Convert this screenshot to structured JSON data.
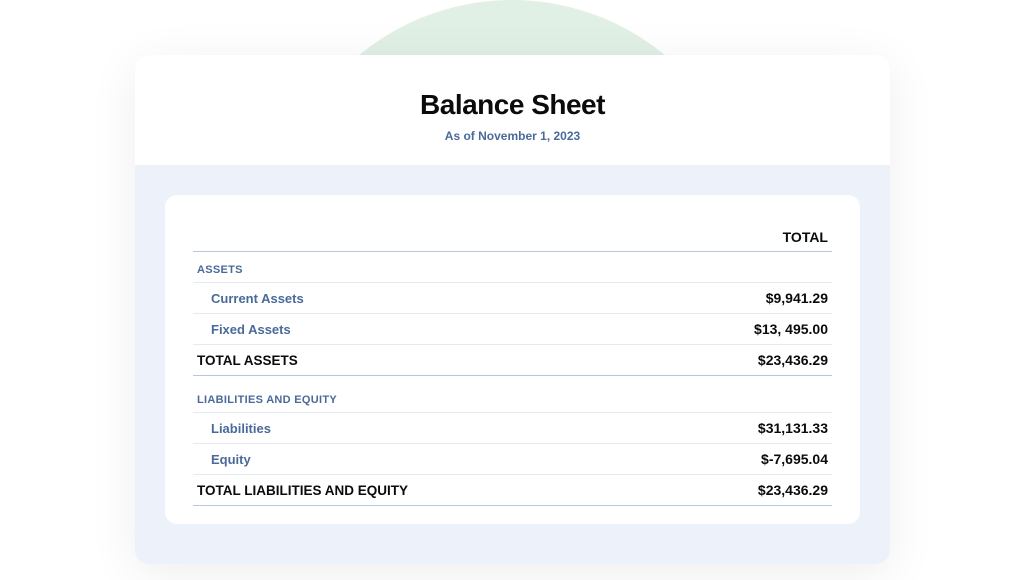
{
  "colors": {
    "bgCircle": "#e1f0e4",
    "outerBg": "#edf1f9",
    "headerBg": "#ffffff",
    "cardBg": "#ffffff",
    "title": "#0b0b0b",
    "subtitle": "#4a6a9a",
    "sectionHeader": "#4a6a9a",
    "labelSub": "#4a6a9a",
    "amount": "#0b0b0b",
    "totalText": "#0b0b0b",
    "borderLight": "#e5e9f0",
    "borderStrong": "#b8c6dc"
  },
  "report": {
    "title": "Balance Sheet",
    "subtitle": "As of November 1, 2023",
    "totalHeader": "TOTAL",
    "sections": [
      {
        "header": "ASSETS",
        "rows": [
          {
            "label": "Current Assets",
            "amount": "$9,941.29"
          },
          {
            "label": "Fixed Assets",
            "amount": "$13, 495.00"
          }
        ],
        "total": {
          "label": "TOTAL ASSETS",
          "amount": "$23,436.29"
        }
      },
      {
        "header": "LIABILITIES AND EQUITY",
        "rows": [
          {
            "label": "Liabilities",
            "amount": "$31,131.33"
          },
          {
            "label": "Equity",
            "amount": "$-7,695.04"
          }
        ],
        "total": {
          "label": "TOTAL LIABILITIES AND EQUITY",
          "amount": "$23,436.29"
        }
      }
    ]
  }
}
